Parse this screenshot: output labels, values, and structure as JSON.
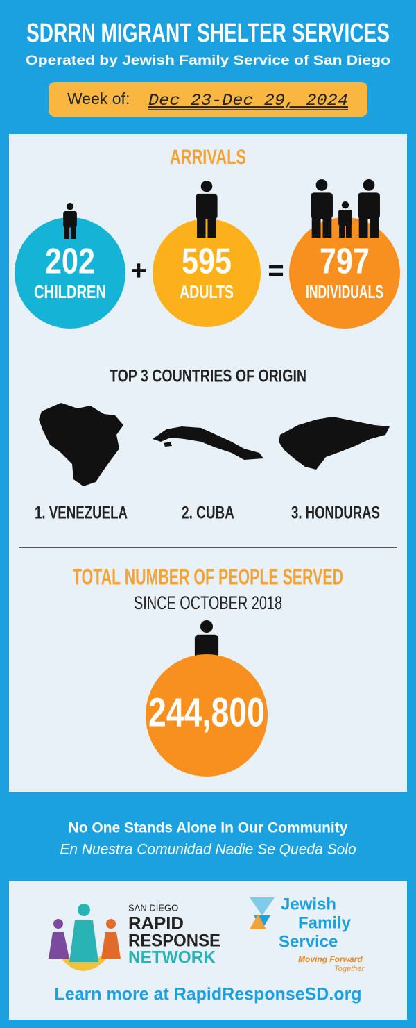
{
  "header": {
    "title": "SDRRN MIGRANT SHELTER SERVICES",
    "subtitle": "Operated by Jewish Family Service of San Diego",
    "week_label": "Week of:",
    "week": "Dec 23-Dec 29, 2024"
  },
  "arrivals": {
    "title": "ARRIVALS",
    "plus": "+",
    "equals": "=",
    "items": [
      {
        "value": 202,
        "label": "CHILDREN"
      },
      {
        "value": 595,
        "label": "ADULTS"
      },
      {
        "value": 797,
        "label": "INDIVIDUALS"
      }
    ]
  },
  "countries": {
    "title": "TOP 3 COUNTRIES OF ORIGIN",
    "items": [
      "1. VENEZUELA",
      "2. CUBA",
      "3. HONDURAS"
    ]
  },
  "total": {
    "title": "TOTAL NUMBER OF PEOPLE SERVED",
    "subtitle": "SINCE OCTOBER 2018",
    "value": "244,800"
  },
  "footer": {
    "tagline": "No One Stands Alone In Our Community",
    "tagline_es": "En Nuestra Comunidad Nadie Se Queda Solo",
    "sdrrn": [
      "SAN DIEGO",
      "RAPID",
      "RESPONSE",
      "NETWORK"
    ],
    "jfs": [
      "Jewish",
      "Family",
      "Service"
    ],
    "jfs_motto": [
      "Moving Forward",
      "Together"
    ],
    "link": "Learn more at RapidResponseSD.org"
  }
}
